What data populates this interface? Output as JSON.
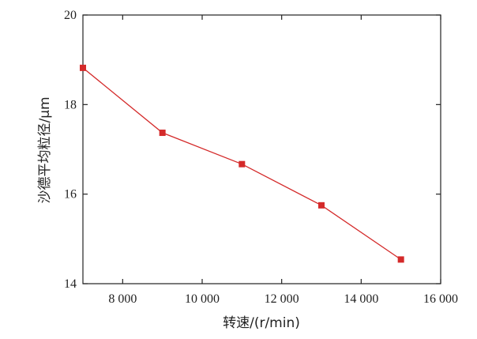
{
  "chart_data": {
    "type": "line",
    "title": "",
    "xlabel": "转速/(r/min)",
    "ylabel": "沙德平均粒径/μm",
    "xlim": [
      7000,
      16000
    ],
    "ylim": [
      14,
      20
    ],
    "xticks": [
      8000,
      10000,
      12000,
      14000,
      16000
    ],
    "xtick_labels": [
      "8 000",
      "10 000",
      "12 000",
      "14 000",
      "16 000"
    ],
    "yticks": [
      14,
      16,
      18,
      20
    ],
    "ytick_labels": [
      "14",
      "16",
      "18",
      "20"
    ],
    "grid": false,
    "series": [
      {
        "color": "#d42a2a",
        "marker": "square",
        "x": [
          7000,
          9000,
          11000,
          13000,
          15000
        ],
        "y": [
          18.82,
          17.37,
          16.67,
          15.75,
          14.54
        ]
      }
    ]
  }
}
